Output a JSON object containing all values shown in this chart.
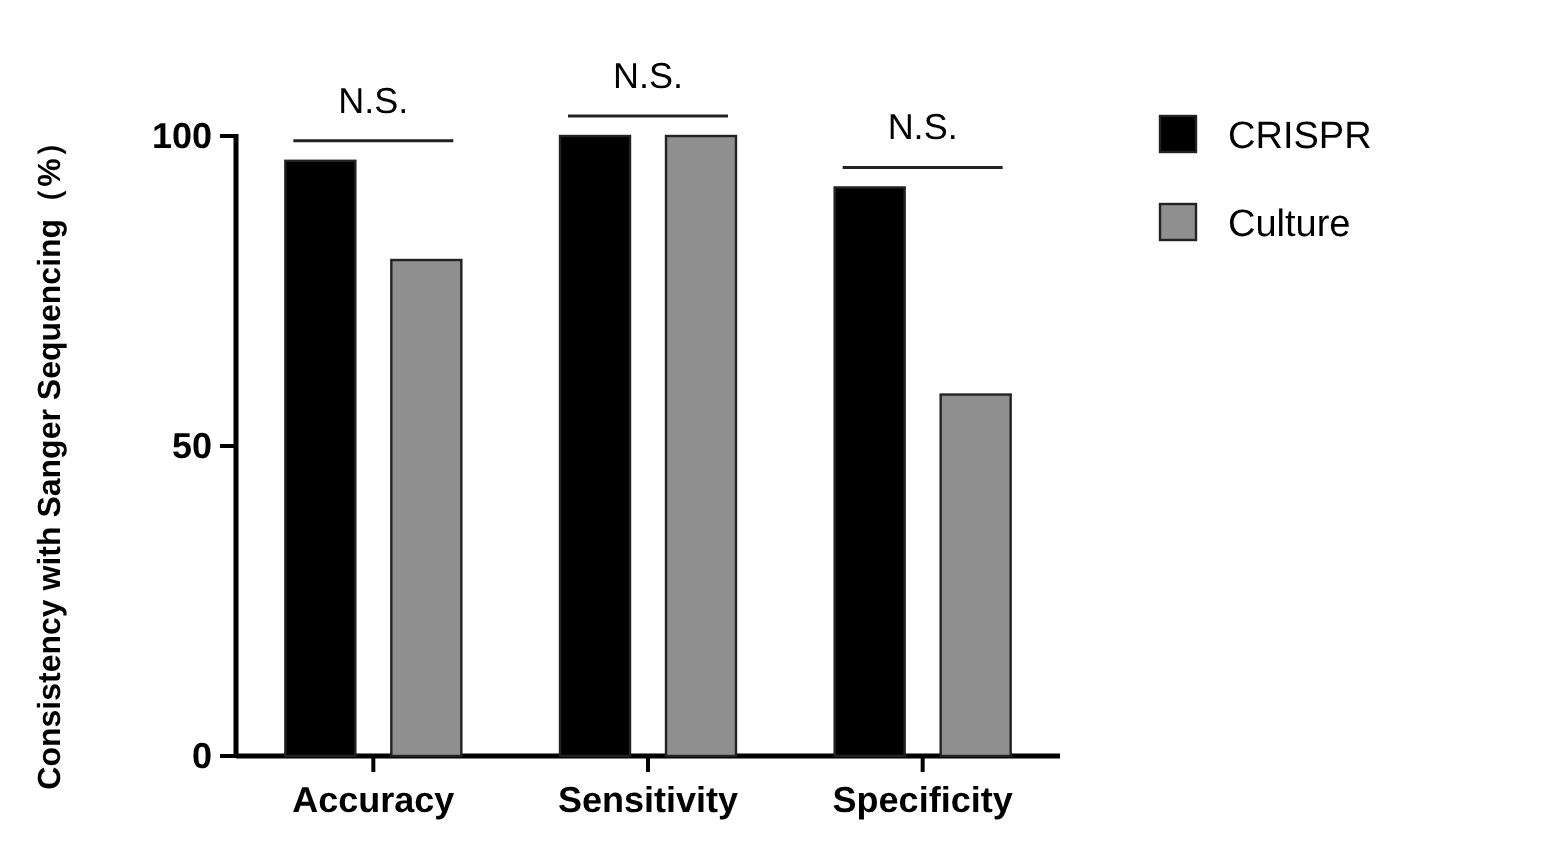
{
  "chart_data": {
    "type": "bar",
    "ylabel": "Consistency with Sanger Sequencing（%）",
    "categories": [
      "Accuracy",
      "Sensitivity",
      "Specificity"
    ],
    "series": [
      {
        "name": "CRISPR",
        "color": "#000000",
        "values": [
          96,
          100,
          91.7
        ]
      },
      {
        "name": "Culture",
        "color": "#8f8f8f",
        "values": [
          80,
          100,
          58.3
        ]
      }
    ],
    "ylim": [
      0,
      100
    ],
    "yticks": [
      0,
      50,
      100
    ],
    "grid": false,
    "legend": "right",
    "annotations": [
      "N.S.",
      "N.S.",
      "N.S."
    ]
  }
}
